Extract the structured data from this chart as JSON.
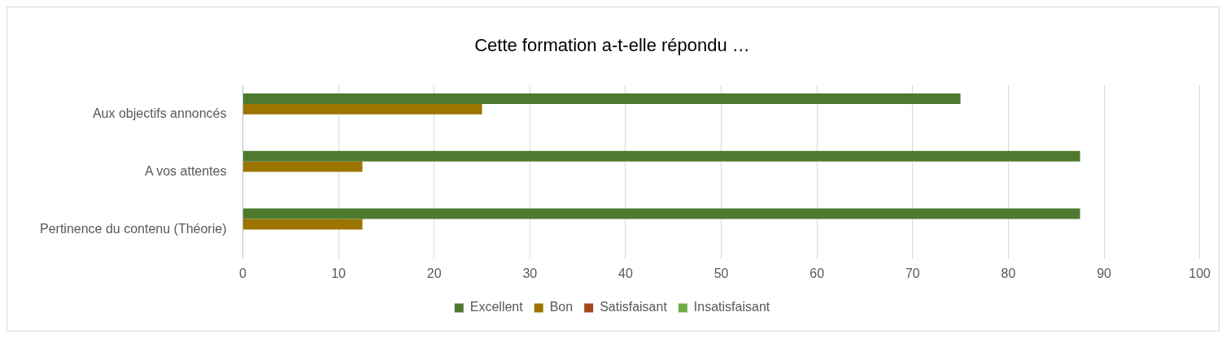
{
  "chart_data": {
    "type": "bar",
    "orientation": "horizontal",
    "title": "Cette formation a-t-elle répondu …",
    "categories": [
      "Aux objectifs annoncés",
      "A vos attentes",
      "Pertinence du contenu (Théorie)"
    ],
    "series": [
      {
        "name": "Excellent",
        "color": "#4e7a2f",
        "values": [
          75,
          87.5,
          87.5
        ]
      },
      {
        "name": "Bon",
        "color": "#9c7400",
        "values": [
          25,
          12.5,
          12.5
        ]
      },
      {
        "name": "Satisfaisant",
        "color": "#a5461a",
        "values": [
          0,
          0,
          0
        ]
      },
      {
        "name": "Insatisfaisant",
        "color": "#70ad47",
        "values": [
          0,
          0,
          0
        ]
      }
    ],
    "xlim": [
      0,
      100
    ],
    "xticks": [
      0,
      10,
      20,
      30,
      40,
      50,
      60,
      70,
      80,
      90,
      100
    ],
    "grid": "x",
    "legend": "bottom"
  }
}
